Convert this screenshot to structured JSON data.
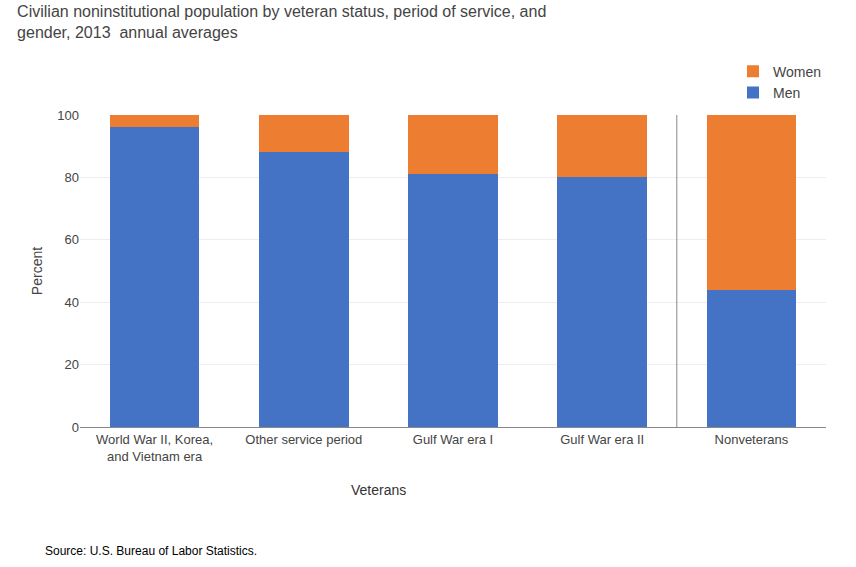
{
  "chart_data": {
    "type": "bar",
    "stacked": true,
    "title": "Civilian noninstitutional population by veteran status, period of service, and\ngender, 2013  annual averages",
    "y_label": "Percent",
    "categories": [
      "World War II, Korea,\nand Vietnam era",
      "Other service period",
      "Gulf War era I",
      "Gulf War era II",
      "Nonveterans"
    ],
    "series": [
      {
        "name": "Men",
        "color": "#4472C4",
        "values": [
          96,
          88,
          81,
          80,
          44
        ]
      },
      {
        "name": "Women",
        "color": "#ED7D31",
        "values": [
          4,
          12,
          19,
          20,
          56
        ]
      }
    ],
    "annotations": [
      {
        "text": "Veterans"
      },
      {
        "text": "Source: U.S. Bureau of Labor Statistics."
      }
    ],
    "ylim": [
      0,
      100
    ],
    "yticks": [
      0,
      20,
      40,
      60,
      80,
      100
    ],
    "grid": true,
    "legend": "upper right"
  }
}
